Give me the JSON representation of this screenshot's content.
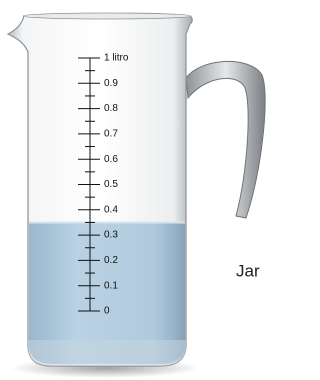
{
  "jar": {
    "scale": {
      "ticks": [
        {
          "value": 1,
          "label": "1 litro"
        },
        0.9,
        0.8,
        0.7,
        0.6,
        0.5,
        0.4,
        0.3,
        0.2,
        0.1,
        0
      ]
    },
    "water_level": 0.35,
    "caption": "Jar"
  }
}
